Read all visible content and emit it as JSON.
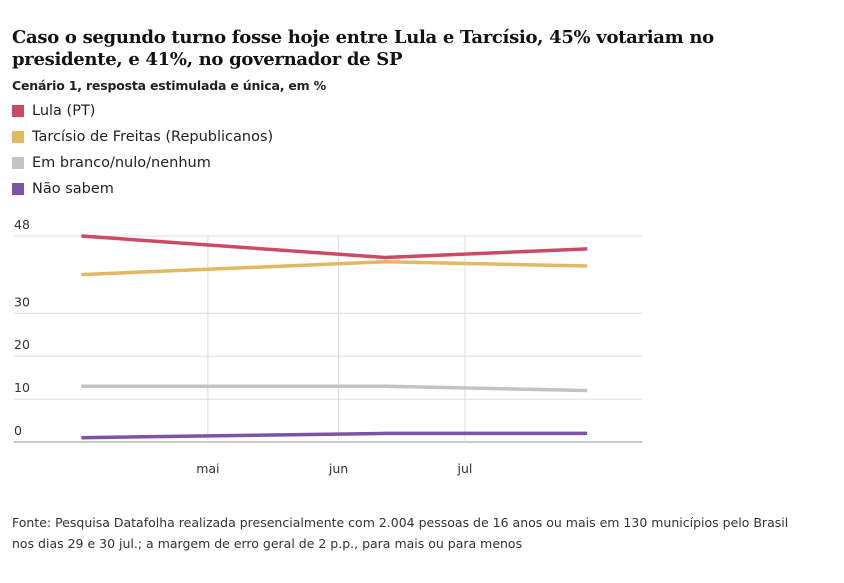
{
  "title": "Caso o segundo turno fosse hoje entre Lula e Tarcísio, 45% votariam no presidente, e 41%, no governador de SP",
  "subtitle": "Cenário 1, resposta estimulada e única, em %",
  "source": "Fonte: Pesquisa Datafolha realizada presencialmente com 2.004 pessoas de 16 anos ou mais em 130 municípios pelo Brasil nos dias 29 e 30 jul.; a margem de erro geral de 2 p.p., para mais ou para menos",
  "chart_data": {
    "type": "line",
    "x": [
      "2025-04-01",
      "2025-06-12",
      "2025-07-30"
    ],
    "x_ticks": [
      "mai",
      "jun",
      "jul"
    ],
    "y_ticks": [
      48,
      30,
      20,
      10,
      0
    ],
    "ylim": [
      0,
      48
    ],
    "grid": true,
    "legend_position": "top-left",
    "series": [
      {
        "name": "Lula (PT)",
        "color": "#cc4a63",
        "values": [
          48,
          43,
          45
        ]
      },
      {
        "name": "Tarcísio de Freitas (Republicanos)",
        "color": "#e3b862",
        "values": [
          39,
          42,
          41
        ]
      },
      {
        "name": "Em branco/nulo/nenhum",
        "color": "#c4c4c4",
        "values": [
          13,
          13,
          12
        ]
      },
      {
        "name": "Não sabem",
        "color": "#7b54a3",
        "values": [
          1,
          2,
          2
        ]
      }
    ]
  }
}
